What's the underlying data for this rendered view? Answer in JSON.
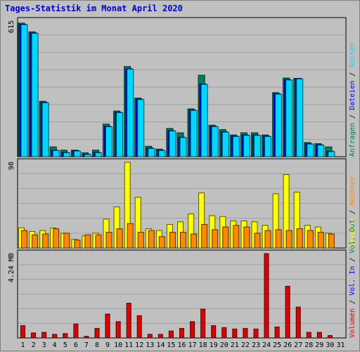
{
  "title": "Tages-Statistik im Monat April 2020",
  "colors": {
    "background": "#c0c0c0",
    "panel": "#c0c0c0",
    "grid": "#a0a0a0",
    "title": "#0000cc",
    "anfragen": "#00805a",
    "dateien": "#0000ff",
    "seiten": "#00d8ff",
    "besuche": "#ffff00",
    "rechner": "#ff8800",
    "volumen": "#e00000",
    "vol_in": "#e00000",
    "vol_out": "#0000ff",
    "weekend_label": "#00805a"
  },
  "chart_data": {
    "type": "bar",
    "days": [
      "1",
      "2",
      "3",
      "4",
      "5",
      "6",
      "7",
      "8",
      "9",
      "10",
      "11",
      "12",
      "13",
      "14",
      "15",
      "16",
      "17",
      "18",
      "19",
      "20",
      "21",
      "22",
      "23",
      "24",
      "25",
      "26",
      "27",
      "28",
      "29",
      "30",
      "31"
    ],
    "weekend_days": [
      "4",
      "5",
      "11",
      "12",
      "18",
      "19",
      "25",
      "26"
    ],
    "panels": [
      {
        "id": "hits",
        "ymax_label": "615",
        "ymax": 615,
        "right_labels": [
          {
            "text": "Anfragen",
            "color": "#00805a"
          },
          {
            "text": "Dateien",
            "color": "#0000ff"
          },
          {
            "text": "Seiten",
            "color": "#00d8ff"
          }
        ],
        "series": [
          {
            "name": "Anfragen",
            "color": "#00805a",
            "values": [
              615,
              575,
              255,
              45,
              30,
              30,
              18,
              30,
              150,
              210,
              415,
              270,
              48,
              35,
              130,
              110,
              220,
              375,
              145,
              125,
              100,
              110,
              110,
              100,
              295,
              362,
              360,
              65,
              60,
              45,
              0
            ]
          },
          {
            "name": "Dateien",
            "color": "#0000ff",
            "values": [
              610,
              570,
              250,
              30,
              20,
              28,
              12,
              20,
              140,
              205,
              405,
              265,
              40,
              30,
              120,
              90,
              215,
              335,
              140,
              115,
              95,
              100,
              100,
              95,
              290,
              355,
              360,
              60,
              55,
              25,
              0
            ]
          },
          {
            "name": "Seiten",
            "color": "#00d8ff",
            "values": [
              608,
              568,
              248,
              28,
              18,
              26,
              10,
              18,
              138,
              203,
              403,
              263,
              38,
              28,
              118,
              88,
              213,
              333,
              138,
              113,
              93,
              98,
              98,
              93,
              288,
              353,
              358,
              58,
              53,
              23,
              0
            ]
          }
        ]
      },
      {
        "id": "visits",
        "ymax_label": "98",
        "ymax": 98,
        "right_labels": [
          {
            "text": "Besuche",
            "color": "#ffff00"
          },
          {
            "text": "Rechner",
            "color": "#ff8800"
          }
        ],
        "series": [
          {
            "name": "Besuche",
            "color": "#ffff00",
            "values": [
              23,
              19,
              20,
              23,
              17,
              10,
              14,
              17,
              33,
              47,
              98,
              58,
              22,
              20,
              27,
              30,
              39,
              63,
              37,
              36,
              31,
              31,
              30,
              26,
              62,
              84,
              64,
              26,
              24,
              17,
              0
            ]
          },
          {
            "name": "Rechner",
            "color": "#ff8800",
            "values": [
              20,
              15,
              16,
              22,
              17,
              9,
              15,
              15,
              18,
              22,
              28,
              18,
              20,
              13,
              18,
              18,
              16,
              27,
              21,
              24,
              26,
              24,
              17,
              20,
              21,
              20,
              22,
              20,
              18,
              16,
              0
            ]
          }
        ]
      },
      {
        "id": "volume",
        "ymax_label": "4.24 MB",
        "ymax": 4.24,
        "right_labels": [
          {
            "text": "Volumen",
            "color": "#e00000"
          },
          {
            "text": "Vol. In",
            "color": "#0000ff"
          },
          {
            "text": "Vol. Out",
            "color": "#00805a"
          }
        ],
        "series": [
          {
            "name": "Volumen",
            "color": "#e00000",
            "values": [
              0.62,
              0.25,
              0.28,
              0.18,
              0.22,
              0.7,
              0.08,
              0.48,
              1.2,
              0.82,
              1.75,
              1.12,
              0.18,
              0.18,
              0.35,
              0.48,
              0.82,
              1.45,
              0.62,
              0.52,
              0.45,
              0.48,
              0.45,
              4.24,
              0.55,
              2.6,
              1.55,
              0.28,
              0.28,
              0.12,
              0.0
            ]
          }
        ]
      }
    ]
  }
}
